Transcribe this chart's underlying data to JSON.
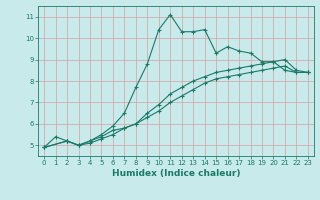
{
  "xlabel": "Humidex (Indice chaleur)",
  "ylabel": "",
  "bg_color": "#c8eaea",
  "grid_color": "#d4a0a0",
  "line_color": "#1a7a6a",
  "xlim": [
    -0.5,
    23.5
  ],
  "ylim": [
    4.5,
    11.5
  ],
  "xticks": [
    0,
    1,
    2,
    3,
    4,
    5,
    6,
    7,
    8,
    9,
    10,
    11,
    12,
    13,
    14,
    15,
    16,
    17,
    18,
    19,
    20,
    21,
    22,
    23
  ],
  "yticks": [
    5,
    6,
    7,
    8,
    9,
    10,
    11
  ],
  "series1_x": [
    0,
    1,
    2,
    3,
    4,
    5,
    6,
    7,
    8,
    9,
    10,
    11,
    12,
    13,
    14,
    15,
    16,
    17,
    18,
    19,
    20,
    21,
    22,
    23
  ],
  "series1_y": [
    4.9,
    5.4,
    5.2,
    5.0,
    5.2,
    5.5,
    5.9,
    6.5,
    7.7,
    8.8,
    10.4,
    11.1,
    10.3,
    10.3,
    10.4,
    9.3,
    9.6,
    9.4,
    9.3,
    8.9,
    8.9,
    8.5,
    8.4,
    8.4
  ],
  "series2_x": [
    0,
    2,
    3,
    4,
    5,
    6,
    7,
    8,
    9,
    10,
    11,
    12,
    13,
    14,
    15,
    16,
    17,
    18,
    19,
    20,
    21,
    22,
    23
  ],
  "series2_y": [
    4.9,
    5.2,
    5.0,
    5.2,
    5.4,
    5.7,
    5.8,
    6.0,
    6.5,
    6.9,
    7.4,
    7.7,
    8.0,
    8.2,
    8.4,
    8.5,
    8.6,
    8.7,
    8.8,
    8.9,
    9.0,
    8.5,
    8.4
  ],
  "series3_x": [
    0,
    2,
    3,
    4,
    5,
    6,
    7,
    8,
    9,
    10,
    11,
    12,
    13,
    14,
    15,
    16,
    17,
    18,
    19,
    20,
    21,
    22,
    23
  ],
  "series3_y": [
    4.9,
    5.2,
    5.0,
    5.1,
    5.3,
    5.5,
    5.8,
    6.0,
    6.3,
    6.6,
    7.0,
    7.3,
    7.6,
    7.9,
    8.1,
    8.2,
    8.3,
    8.4,
    8.5,
    8.6,
    8.7,
    8.4,
    8.4
  ]
}
